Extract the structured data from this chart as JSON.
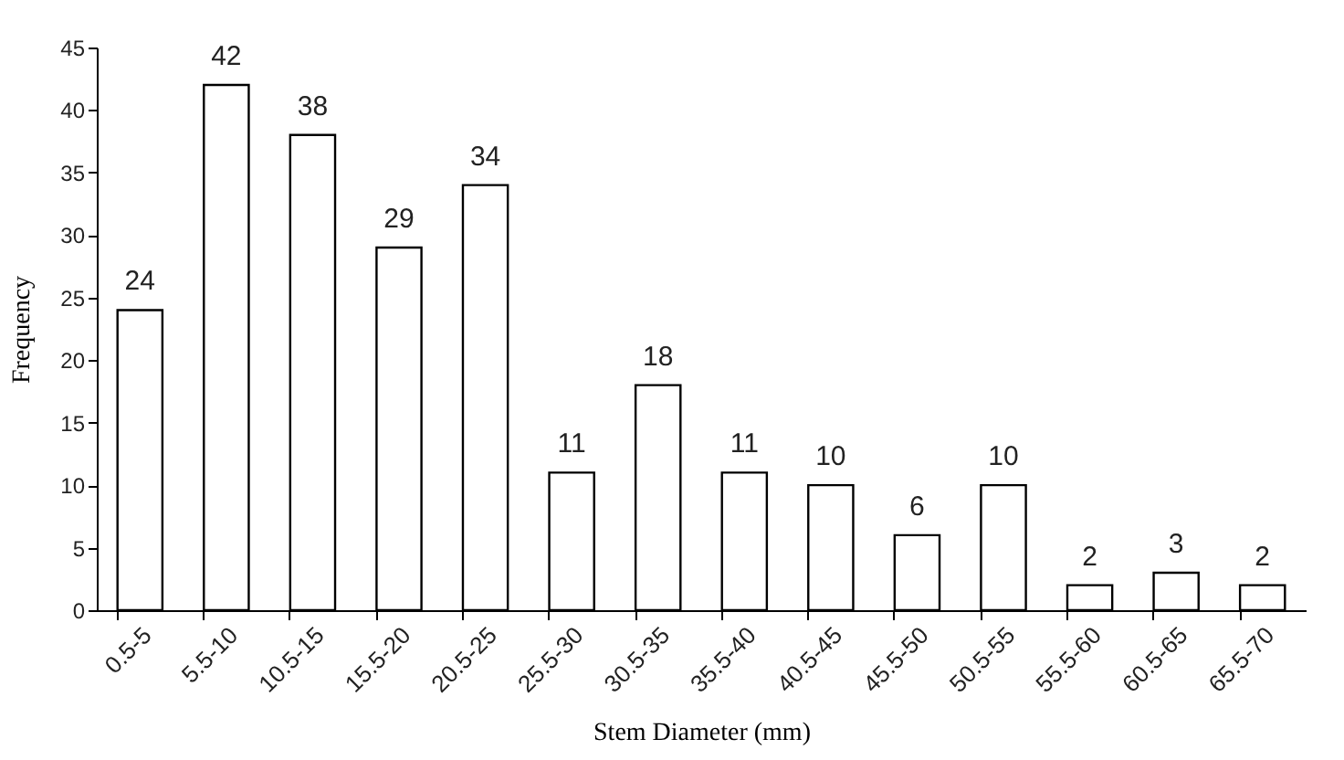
{
  "chart_data": {
    "type": "bar",
    "xlabel": "Stem Diameter (mm)",
    "ylabel": "Frequency",
    "categories": [
      "0.5-5",
      "5.5-10",
      "10.5-15",
      "15.5-20",
      "20.5-25",
      "25.5-30",
      "30.5-35",
      "35.5-40",
      "40.5-45",
      "45.5-50",
      "50.5-55",
      "55.5-60",
      "60.5-65",
      "65.5-70"
    ],
    "values": [
      24,
      42,
      38,
      29,
      34,
      11,
      18,
      11,
      10,
      6,
      10,
      2,
      3,
      2
    ],
    "color": "#ffffff",
    "ylim": [
      0,
      45
    ],
    "yticks": [
      0,
      5,
      10,
      15,
      20,
      25,
      30,
      35,
      40,
      45
    ],
    "grid": false,
    "data_labels": true
  }
}
